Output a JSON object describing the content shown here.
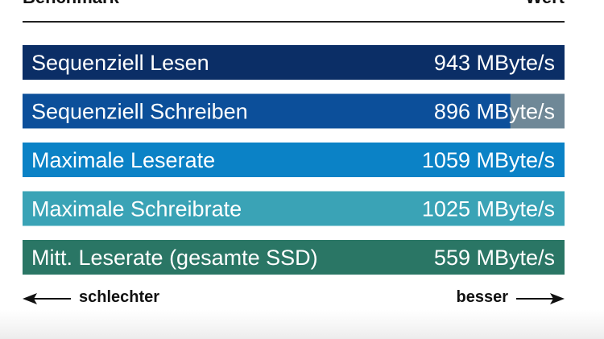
{
  "header": {
    "left_title": "Benchmark",
    "right_title": "Wert"
  },
  "chart_data": {
    "type": "bar",
    "orientation": "horizontal",
    "unit": "MByte/s",
    "categories": [
      "Sequenziell Lesen",
      "Sequenziell Schreiben",
      "Maximale Leserate",
      "Maximale Schreibrate",
      "Mitt. Leserate (gesamte SSD)"
    ],
    "values": [
      943,
      896,
      1059,
      1025,
      559
    ],
    "value_labels": [
      "943 MByte/s",
      "896 MByte/s",
      "1059 MByte/s",
      "1025 MByte/s",
      "559 MByte/s"
    ],
    "partial_fill": [
      null,
      0.9,
      null,
      null,
      null
    ],
    "colors": [
      "#0b2e66",
      "#0c4f9a",
      "#0b82c6",
      "#3aa3b6",
      "#2a7665"
    ],
    "remainder_color": "#6f8897"
  },
  "footer": {
    "left_text": "schlechter",
    "right_text": "besser"
  }
}
